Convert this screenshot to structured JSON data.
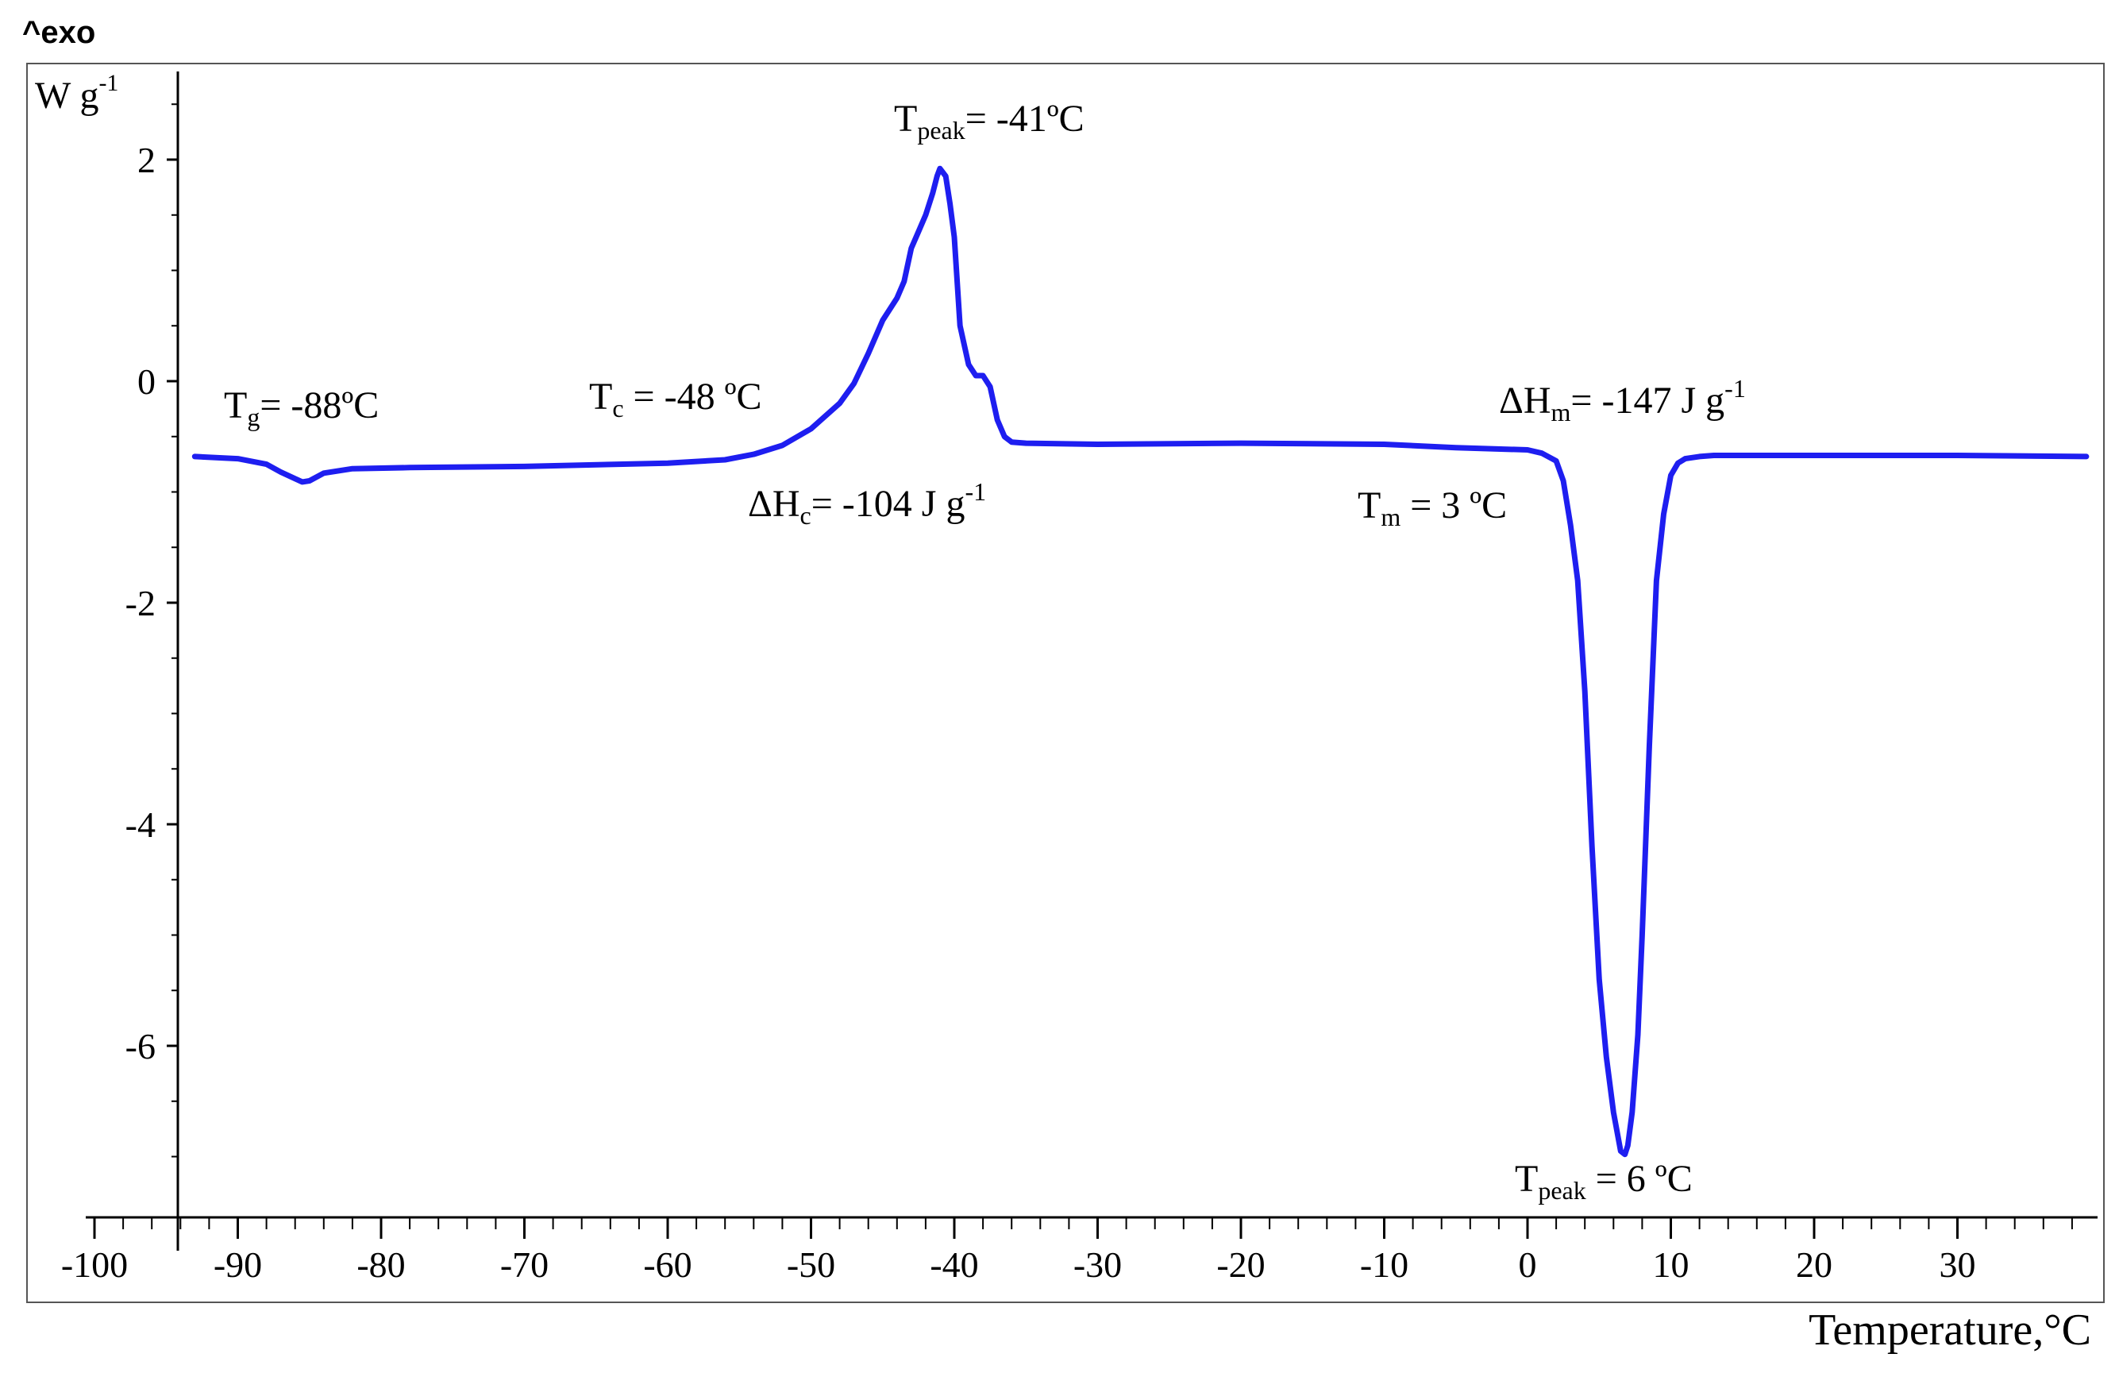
{
  "chart_data": {
    "type": "line",
    "corner_label": "^exo",
    "ylabel": "W g",
    "ylabel_sup": "-1",
    "xlabel": "Temperature,°C",
    "xlim": [
      -100,
      40
    ],
    "ylim": [
      -7.5,
      2.8
    ],
    "x_ticks": [
      -100,
      -90,
      -80,
      -70,
      -60,
      -50,
      -40,
      -30,
      -20,
      -10,
      0,
      10,
      20,
      30
    ],
    "x_tick_labels": [
      "-100",
      "-90",
      "-80",
      "-70",
      "-60",
      "-50",
      "-40",
      "-30",
      "-20",
      "-10",
      "0",
      "10",
      "20",
      "30"
    ],
    "y_ticks": [
      2,
      0,
      -2,
      -4,
      -6
    ],
    "y_tick_labels": [
      "2",
      "0",
      "-2",
      "-4",
      "-6"
    ],
    "grid": false,
    "line_color": "#1e1ef0",
    "series": [
      {
        "x": [
          -93,
          -90,
          -88,
          -87,
          -86,
          -85.5,
          -85,
          -84,
          -82,
          -78,
          -70,
          -60,
          -56,
          -54,
          -52,
          -50,
          -48,
          -47,
          -46,
          -45,
          -44,
          -43.5,
          -43,
          -42.5,
          -42,
          -41.5,
          -41.2,
          -41,
          -40.6,
          -40.3,
          -40,
          -39.6,
          -39,
          -38.5,
          -38,
          -37.5,
          -37,
          -36.5,
          -36,
          -35,
          -30,
          -20,
          -10,
          -5,
          0,
          1,
          2,
          2.5,
          3,
          3.5,
          4,
          4.5,
          5,
          5.5,
          6,
          6.5,
          6.8,
          7,
          7.3,
          7.7,
          8,
          8.5,
          9,
          9.5,
          10,
          10.5,
          11,
          12,
          13,
          16,
          20,
          30,
          39
        ],
        "y": [
          -0.68,
          -0.7,
          -0.75,
          -0.82,
          -0.88,
          -0.91,
          -0.9,
          -0.83,
          -0.79,
          -0.78,
          -0.77,
          -0.74,
          -0.71,
          -0.66,
          -0.58,
          -0.43,
          -0.2,
          -0.02,
          0.25,
          0.55,
          0.75,
          0.9,
          1.2,
          1.35,
          1.5,
          1.7,
          1.85,
          1.92,
          1.85,
          1.6,
          1.3,
          0.5,
          0.15,
          0.05,
          0.05,
          -0.05,
          -0.35,
          -0.5,
          -0.55,
          -0.56,
          -0.57,
          -0.56,
          -0.57,
          -0.6,
          -0.62,
          -0.65,
          -0.72,
          -0.9,
          -1.3,
          -1.8,
          -2.8,
          -4.2,
          -5.4,
          -6.1,
          -6.6,
          -6.95,
          -6.98,
          -6.9,
          -6.6,
          -5.9,
          -5.0,
          -3.3,
          -1.8,
          -1.2,
          -0.85,
          -0.74,
          -0.7,
          -0.68,
          -0.67,
          -0.67,
          -0.67,
          -0.67,
          -0.68
        ]
      }
    ],
    "annotations": [
      {
        "id": "tg",
        "main": "T",
        "sub": "g",
        "rest": "= -88ºC",
        "sup": ""
      },
      {
        "id": "tc",
        "main": "T",
        "sub": "c",
        "rest": " = -48 ºC",
        "sup": ""
      },
      {
        "id": "tpeak1",
        "main": "T",
        "sub": "peak",
        "rest": "= -41ºC",
        "sup": ""
      },
      {
        "id": "dhc",
        "main": "ΔH",
        "sub": "c",
        "rest": "= -104 J g",
        "sup": "-1"
      },
      {
        "id": "dhm",
        "main": "ΔH",
        "sub": "m",
        "rest": "= -147 J g",
        "sup": "-1"
      },
      {
        "id": "tm",
        "main": "T",
        "sub": "m",
        "rest": " = 3 ºC",
        "sup": ""
      },
      {
        "id": "tpeak2",
        "main": "T",
        "sub": "peak",
        "rest": " = 6 ºC",
        "sup": ""
      }
    ]
  }
}
